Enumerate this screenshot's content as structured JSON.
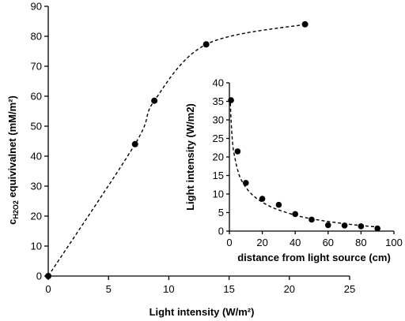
{
  "chart_data": [
    {
      "id": "main",
      "type": "scatter",
      "xlabel": "Light intensity (W/m²)",
      "ylabel_main": "c",
      "ylabel_sub": "H2O2",
      "ylabel_rest": " equivivalnet (mM/m²)",
      "xlim": [
        0,
        25
      ],
      "ylim": [
        0,
        90
      ],
      "xticks": [
        0,
        5,
        10,
        15,
        20,
        25
      ],
      "yticks": [
        0,
        10,
        20,
        30,
        40,
        50,
        60,
        70,
        80,
        90
      ],
      "points": {
        "x": [
          0,
          7.2,
          8.8,
          13.1,
          21.3
        ],
        "y": [
          0,
          44,
          58.5,
          77.3,
          84
        ]
      },
      "trendline": {
        "x": [
          0,
          7.2,
          8.8,
          13.1,
          21.3
        ],
        "y": [
          0,
          44,
          58.5,
          77.3,
          84
        ]
      },
      "grid": false
    },
    {
      "id": "inset",
      "type": "scatter",
      "xlabel": "distance from light source (cm)",
      "ylabel": "Light intensity (W/m2)",
      "xlim": [
        0,
        100
      ],
      "ylim": [
        0,
        40
      ],
      "xticks": [
        0,
        20,
        40,
        60,
        80,
        100
      ],
      "yticks": [
        0,
        5,
        10,
        15,
        20,
        25,
        30,
        35,
        40
      ],
      "points": {
        "x": [
          1,
          5,
          10,
          20,
          30,
          40,
          50,
          60,
          70,
          80,
          90
        ],
        "y": [
          35.3,
          21.5,
          13,
          8.7,
          7.1,
          4.6,
          3.1,
          1.6,
          1.5,
          1.3,
          0.7
        ]
      },
      "trendline": {
        "x": [
          0.5,
          1,
          2,
          3,
          5,
          7,
          10,
          13,
          16,
          20,
          25,
          30,
          40,
          50,
          60,
          70,
          80,
          90
        ],
        "y": [
          36,
          30,
          23.5,
          20.5,
          16.5,
          14,
          11.8,
          10.2,
          9,
          7.8,
          6.6,
          5.7,
          4.3,
          3.3,
          2.6,
          2,
          1.5,
          1.1
        ]
      },
      "grid": false
    }
  ]
}
